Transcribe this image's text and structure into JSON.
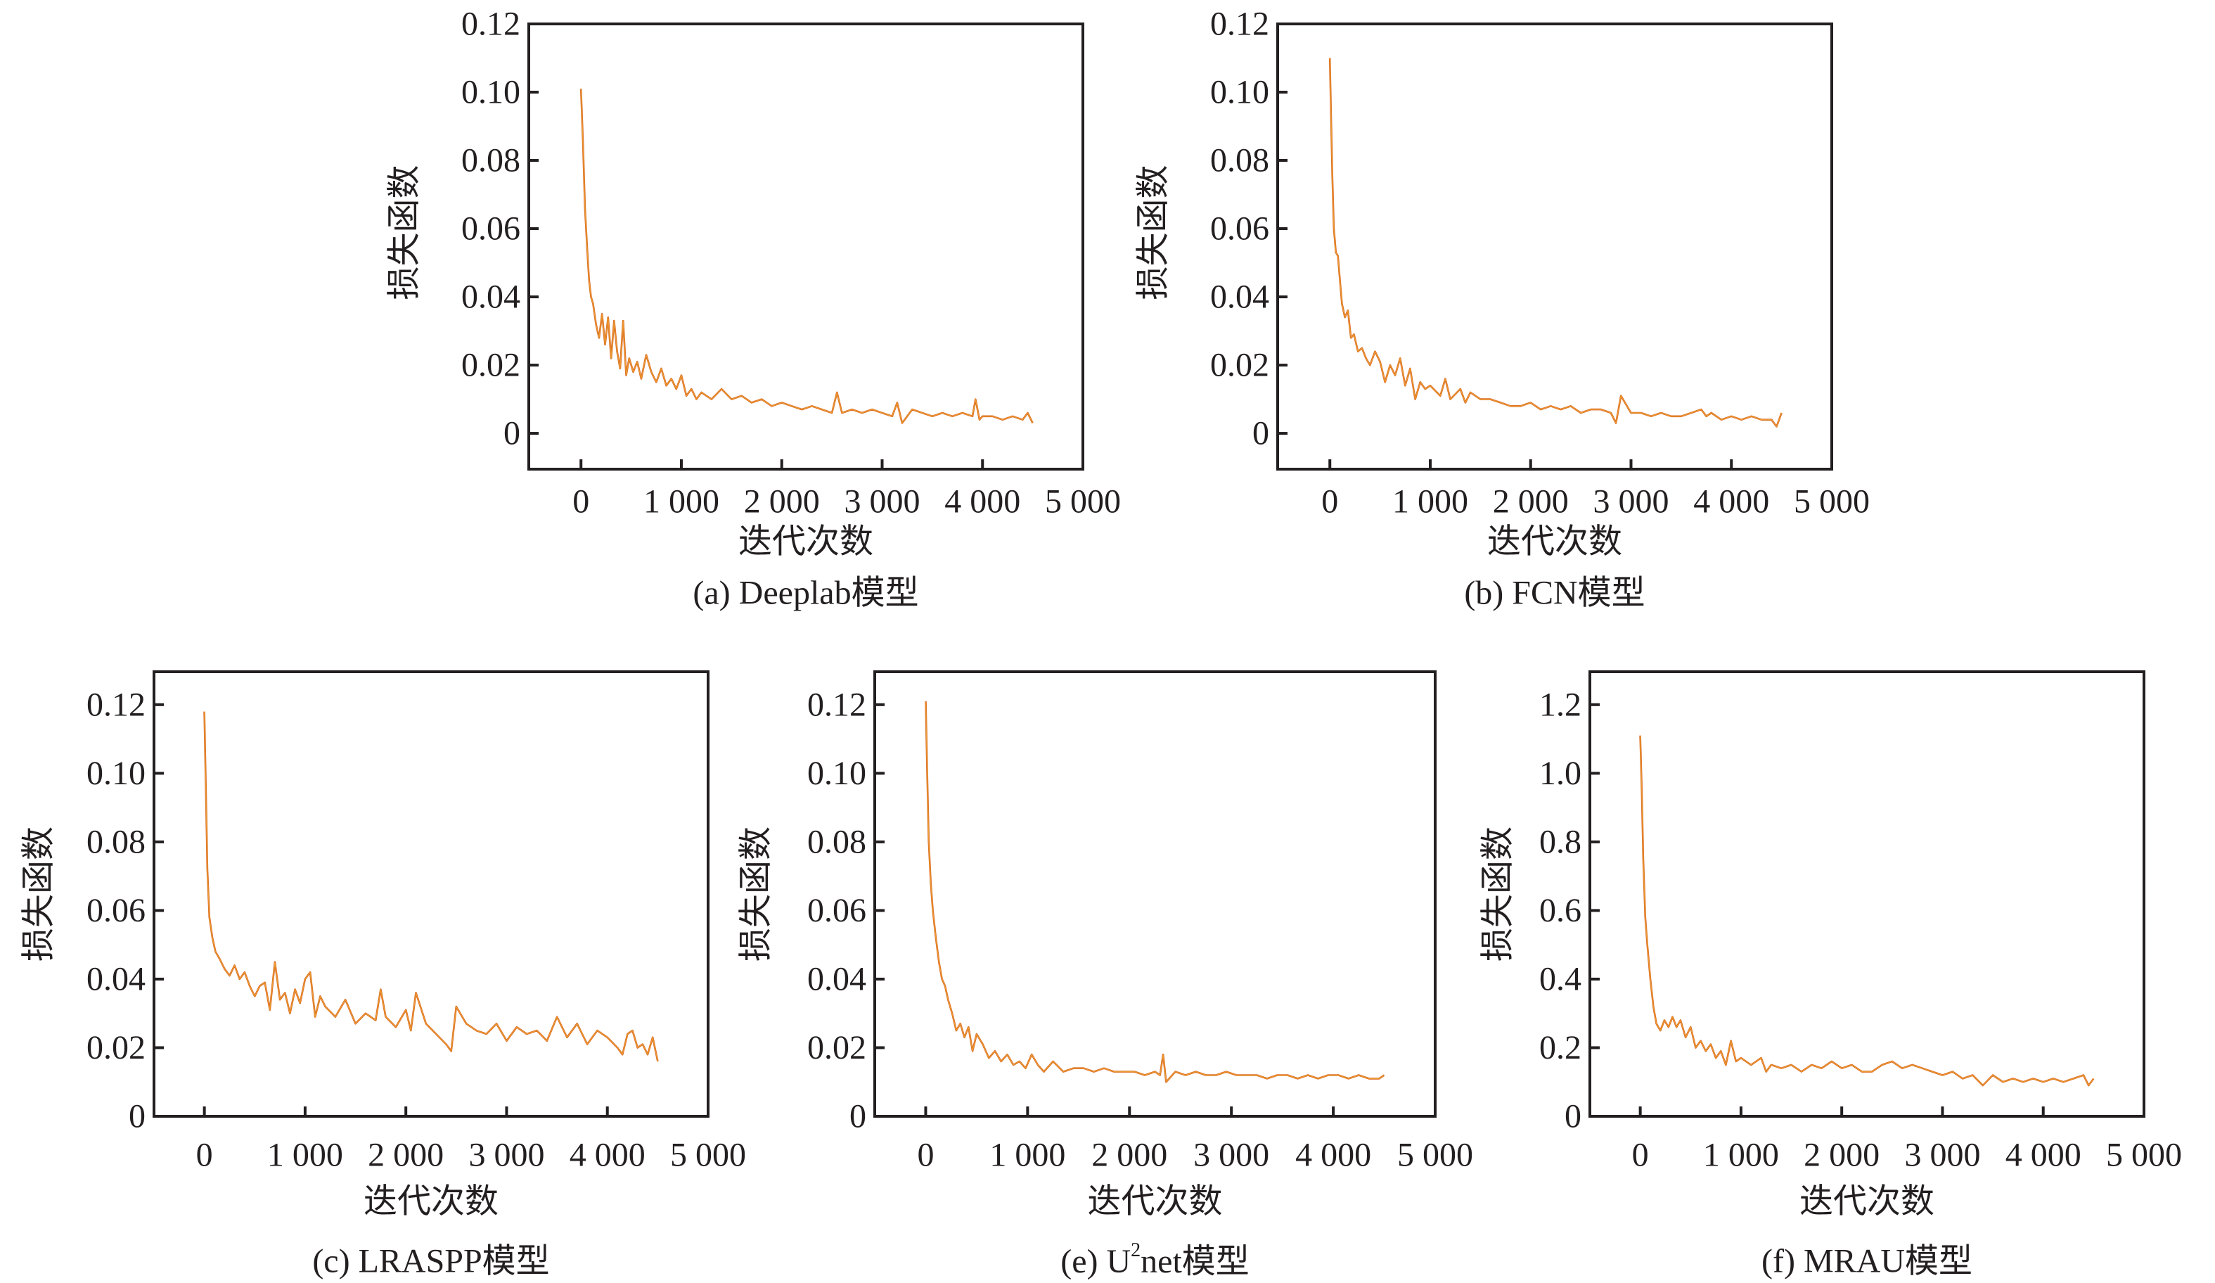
{
  "figure": {
    "description": "Loss curves of five segmentation models over training iterations"
  },
  "chart_data": [
    {
      "id": "a",
      "type": "line",
      "title": "(a) Deeplab模型",
      "xlabel": "迭代次数",
      "ylabel": "损失函数",
      "xlim": [
        -520,
        5000
      ],
      "ylim": [
        -0.0105,
        0.12
      ],
      "xticks": [
        0,
        1000,
        2000,
        3000,
        4000,
        5000
      ],
      "xtick_labels": [
        "0",
        "1 000",
        "2 000",
        "3 000",
        "4 000",
        "5 000"
      ],
      "yticks": [
        0,
        0.02,
        0.04,
        0.06,
        0.08,
        0.1,
        0.12
      ],
      "ytick_labels": [
        "0",
        "0.02",
        "0.04",
        "0.06",
        "0.08",
        "0.10",
        "0.12"
      ],
      "grid": false,
      "series": [
        {
          "name": "loss",
          "color": "#d9661e",
          "x": [
            0,
            20,
            40,
            60,
            80,
            100,
            120,
            150,
            180,
            210,
            240,
            270,
            300,
            330,
            360,
            390,
            420,
            450,
            480,
            520,
            560,
            600,
            650,
            700,
            750,
            800,
            850,
            900,
            950,
            1000,
            1050,
            1100,
            1150,
            1200,
            1300,
            1400,
            1500,
            1600,
            1700,
            1800,
            1900,
            2000,
            2100,
            2200,
            2300,
            2400,
            2500,
            2550,
            2600,
            2700,
            2800,
            2900,
            3000,
            3100,
            3150,
            3200,
            3300,
            3400,
            3500,
            3600,
            3700,
            3800,
            3900,
            3930,
            3970,
            4000,
            4100,
            4200,
            4300,
            4400,
            4450,
            4500
          ],
          "y": [
            0.101,
            0.085,
            0.066,
            0.055,
            0.045,
            0.04,
            0.038,
            0.032,
            0.028,
            0.035,
            0.026,
            0.034,
            0.022,
            0.033,
            0.024,
            0.019,
            0.033,
            0.017,
            0.022,
            0.018,
            0.021,
            0.016,
            0.023,
            0.018,
            0.015,
            0.019,
            0.014,
            0.016,
            0.013,
            0.017,
            0.011,
            0.013,
            0.01,
            0.012,
            0.01,
            0.013,
            0.01,
            0.011,
            0.009,
            0.01,
            0.008,
            0.009,
            0.008,
            0.007,
            0.008,
            0.007,
            0.006,
            0.012,
            0.006,
            0.007,
            0.006,
            0.007,
            0.006,
            0.005,
            0.009,
            0.003,
            0.007,
            0.006,
            0.005,
            0.006,
            0.005,
            0.006,
            0.005,
            0.01,
            0.004,
            0.005,
            0.005,
            0.004,
            0.005,
            0.004,
            0.006,
            0.003
          ]
        }
      ]
    },
    {
      "id": "b",
      "type": "line",
      "title": "(b) FCN模型",
      "xlabel": "迭代次数",
      "ylabel": "损失函数",
      "xlim": [
        -520,
        5000
      ],
      "ylim": [
        -0.0105,
        0.12
      ],
      "xticks": [
        0,
        1000,
        2000,
        3000,
        4000,
        5000
      ],
      "xtick_labels": [
        "0",
        "1 000",
        "2 000",
        "3 000",
        "4 000",
        "5 000"
      ],
      "yticks": [
        0,
        0.02,
        0.04,
        0.06,
        0.08,
        0.1,
        0.12
      ],
      "ytick_labels": [
        "0",
        "0.02",
        "0.04",
        "0.06",
        "0.08",
        "0.10",
        "0.12"
      ],
      "grid": false,
      "series": [
        {
          "name": "loss",
          "color": "#d9661e",
          "x": [
            0,
            10,
            25,
            40,
            60,
            80,
            100,
            120,
            150,
            180,
            210,
            240,
            280,
            320,
            360,
            400,
            450,
            500,
            550,
            600,
            650,
            700,
            750,
            800,
            850,
            900,
            950,
            1000,
            1100,
            1150,
            1200,
            1300,
            1350,
            1400,
            1500,
            1600,
            1700,
            1800,
            1900,
            2000,
            2100,
            2200,
            2300,
            2400,
            2500,
            2600,
            2700,
            2800,
            2850,
            2900,
            3000,
            3100,
            3200,
            3300,
            3400,
            3500,
            3600,
            3700,
            3750,
            3800,
            3900,
            4000,
            4100,
            4200,
            4300,
            4400,
            4450,
            4500
          ],
          "y": [
            0.11,
            0.095,
            0.075,
            0.06,
            0.053,
            0.052,
            0.045,
            0.038,
            0.034,
            0.036,
            0.028,
            0.029,
            0.024,
            0.025,
            0.022,
            0.02,
            0.024,
            0.021,
            0.015,
            0.02,
            0.017,
            0.022,
            0.014,
            0.019,
            0.01,
            0.015,
            0.013,
            0.014,
            0.011,
            0.016,
            0.01,
            0.013,
            0.009,
            0.012,
            0.01,
            0.01,
            0.009,
            0.008,
            0.008,
            0.009,
            0.007,
            0.008,
            0.007,
            0.008,
            0.006,
            0.007,
            0.007,
            0.006,
            0.003,
            0.011,
            0.006,
            0.006,
            0.005,
            0.006,
            0.005,
            0.005,
            0.006,
            0.007,
            0.005,
            0.006,
            0.004,
            0.005,
            0.004,
            0.005,
            0.004,
            0.004,
            0.002,
            0.006
          ]
        }
      ]
    },
    {
      "id": "c",
      "type": "line",
      "title": "(c) LRASPP模型",
      "xlabel": "迭代次数",
      "ylabel": "损失函数",
      "xlim": [
        -500,
        5000
      ],
      "ylim": [
        0,
        0.1296
      ],
      "xticks": [
        0,
        1000,
        2000,
        3000,
        4000,
        5000
      ],
      "xtick_labels": [
        "0",
        "1 000",
        "2 000",
        "3 000",
        "4 000",
        "5 000"
      ],
      "yticks": [
        0,
        0.02,
        0.04,
        0.06,
        0.08,
        0.1,
        0.12
      ],
      "ytick_labels": [
        "0",
        "0.02",
        "0.04",
        "0.06",
        "0.08",
        "0.10",
        "0.12"
      ],
      "grid": false,
      "series": [
        {
          "name": "loss",
          "color": "#d9661e",
          "x": [
            0,
            15,
            30,
            50,
            80,
            110,
            150,
            200,
            250,
            300,
            350,
            400,
            450,
            500,
            550,
            600,
            650,
            700,
            750,
            800,
            850,
            900,
            950,
            1000,
            1050,
            1100,
            1150,
            1200,
            1300,
            1400,
            1500,
            1600,
            1700,
            1750,
            1800,
            1900,
            2000,
            2050,
            2100,
            2200,
            2300,
            2400,
            2450,
            2500,
            2600,
            2700,
            2800,
            2900,
            3000,
            3100,
            3200,
            3300,
            3400,
            3500,
            3600,
            3700,
            3800,
            3900,
            4000,
            4100,
            4150,
            4200,
            4250,
            4300,
            4350,
            4400,
            4450,
            4500
          ],
          "y": [
            0.118,
            0.095,
            0.072,
            0.058,
            0.052,
            0.048,
            0.046,
            0.043,
            0.041,
            0.044,
            0.04,
            0.042,
            0.038,
            0.035,
            0.038,
            0.039,
            0.031,
            0.045,
            0.034,
            0.036,
            0.03,
            0.037,
            0.033,
            0.04,
            0.042,
            0.029,
            0.035,
            0.032,
            0.029,
            0.034,
            0.027,
            0.03,
            0.028,
            0.037,
            0.029,
            0.026,
            0.031,
            0.025,
            0.036,
            0.027,
            0.024,
            0.021,
            0.019,
            0.032,
            0.027,
            0.025,
            0.024,
            0.027,
            0.022,
            0.026,
            0.024,
            0.025,
            0.022,
            0.029,
            0.023,
            0.027,
            0.021,
            0.025,
            0.023,
            0.02,
            0.018,
            0.024,
            0.025,
            0.02,
            0.021,
            0.018,
            0.023,
            0.016
          ]
        }
      ]
    },
    {
      "id": "e",
      "type": "line",
      "title": "(e) U²net模型",
      "title_parts": {
        "prefix": "(e) U",
        "superscript": "2",
        "suffix": "net模型"
      },
      "xlabel": "迭代次数",
      "ylabel": "损失函数",
      "xlim": [
        -500,
        5000
      ],
      "ylim": [
        0,
        0.1296
      ],
      "xticks": [
        0,
        1000,
        2000,
        3000,
        4000,
        5000
      ],
      "xtick_labels": [
        "0",
        "1 000",
        "2 000",
        "3 000",
        "4 000",
        "5 000"
      ],
      "yticks": [
        0,
        0.02,
        0.04,
        0.06,
        0.08,
        0.1,
        0.12
      ],
      "ytick_labels": [
        "0",
        "0.02",
        "0.04",
        "0.06",
        "0.08",
        "0.10",
        "0.12"
      ],
      "grid": false,
      "series": [
        {
          "name": "loss",
          "color": "#d9661e",
          "x": [
            0,
            15,
            30,
            50,
            70,
            100,
            130,
            160,
            190,
            220,
            260,
            300,
            340,
            380,
            420,
            460,
            500,
            560,
            620,
            680,
            740,
            800,
            860,
            920,
            980,
            1040,
            1100,
            1160,
            1250,
            1350,
            1450,
            1550,
            1650,
            1750,
            1850,
            1950,
            2050,
            2150,
            2250,
            2300,
            2330,
            2360,
            2450,
            2550,
            2650,
            2750,
            2850,
            2950,
            3050,
            3150,
            3250,
            3350,
            3450,
            3550,
            3650,
            3750,
            3850,
            3950,
            4050,
            4150,
            4250,
            4350,
            4450,
            4500
          ],
          "y": [
            0.121,
            0.1,
            0.08,
            0.068,
            0.06,
            0.052,
            0.045,
            0.04,
            0.038,
            0.034,
            0.03,
            0.025,
            0.027,
            0.023,
            0.026,
            0.019,
            0.024,
            0.021,
            0.017,
            0.019,
            0.016,
            0.018,
            0.015,
            0.016,
            0.014,
            0.018,
            0.015,
            0.013,
            0.016,
            0.013,
            0.014,
            0.014,
            0.013,
            0.014,
            0.013,
            0.013,
            0.013,
            0.012,
            0.013,
            0.012,
            0.018,
            0.01,
            0.013,
            0.012,
            0.013,
            0.012,
            0.012,
            0.013,
            0.012,
            0.012,
            0.012,
            0.011,
            0.012,
            0.012,
            0.011,
            0.012,
            0.011,
            0.012,
            0.012,
            0.011,
            0.012,
            0.011,
            0.011,
            0.012
          ]
        }
      ]
    },
    {
      "id": "f",
      "type": "line",
      "title": "(f) MRAU模型",
      "xlabel": "迭代次数",
      "ylabel": "损失函数",
      "xlim": [
        -500,
        5000
      ],
      "ylim": [
        0,
        1.296
      ],
      "xticks": [
        0,
        1000,
        2000,
        3000,
        4000,
        5000
      ],
      "xtick_labels": [
        "0",
        "1 000",
        "2 000",
        "3 000",
        "4 000",
        "5 000"
      ],
      "yticks": [
        0,
        0.2,
        0.4,
        0.6,
        0.8,
        1.0,
        1.2
      ],
      "ytick_labels": [
        "0",
        "0.2",
        "0.4",
        "0.6",
        "0.8",
        "1.0",
        "1.2"
      ],
      "grid": false,
      "series": [
        {
          "name": "loss",
          "color": "#d9661e",
          "x": [
            0,
            15,
            30,
            50,
            70,
            100,
            130,
            160,
            200,
            240,
            280,
            320,
            360,
            400,
            450,
            500,
            550,
            600,
            650,
            700,
            750,
            800,
            850,
            900,
            950,
            1000,
            1100,
            1200,
            1250,
            1300,
            1400,
            1500,
            1600,
            1700,
            1800,
            1900,
            2000,
            2100,
            2200,
            2300,
            2400,
            2500,
            2600,
            2700,
            2800,
            2900,
            3000,
            3100,
            3200,
            3300,
            3400,
            3500,
            3600,
            3700,
            3800,
            3900,
            4000,
            4100,
            4200,
            4300,
            4400,
            4450,
            4500
          ],
          "y": [
            1.11,
            0.95,
            0.75,
            0.58,
            0.5,
            0.4,
            0.32,
            0.27,
            0.25,
            0.28,
            0.26,
            0.29,
            0.26,
            0.28,
            0.23,
            0.26,
            0.2,
            0.22,
            0.19,
            0.21,
            0.17,
            0.19,
            0.15,
            0.22,
            0.16,
            0.17,
            0.15,
            0.17,
            0.13,
            0.15,
            0.14,
            0.15,
            0.13,
            0.15,
            0.14,
            0.16,
            0.14,
            0.15,
            0.13,
            0.13,
            0.15,
            0.16,
            0.14,
            0.15,
            0.14,
            0.13,
            0.12,
            0.13,
            0.11,
            0.12,
            0.09,
            0.12,
            0.1,
            0.11,
            0.1,
            0.11,
            0.1,
            0.11,
            0.1,
            0.11,
            0.12,
            0.09,
            0.11
          ]
        }
      ]
    }
  ]
}
